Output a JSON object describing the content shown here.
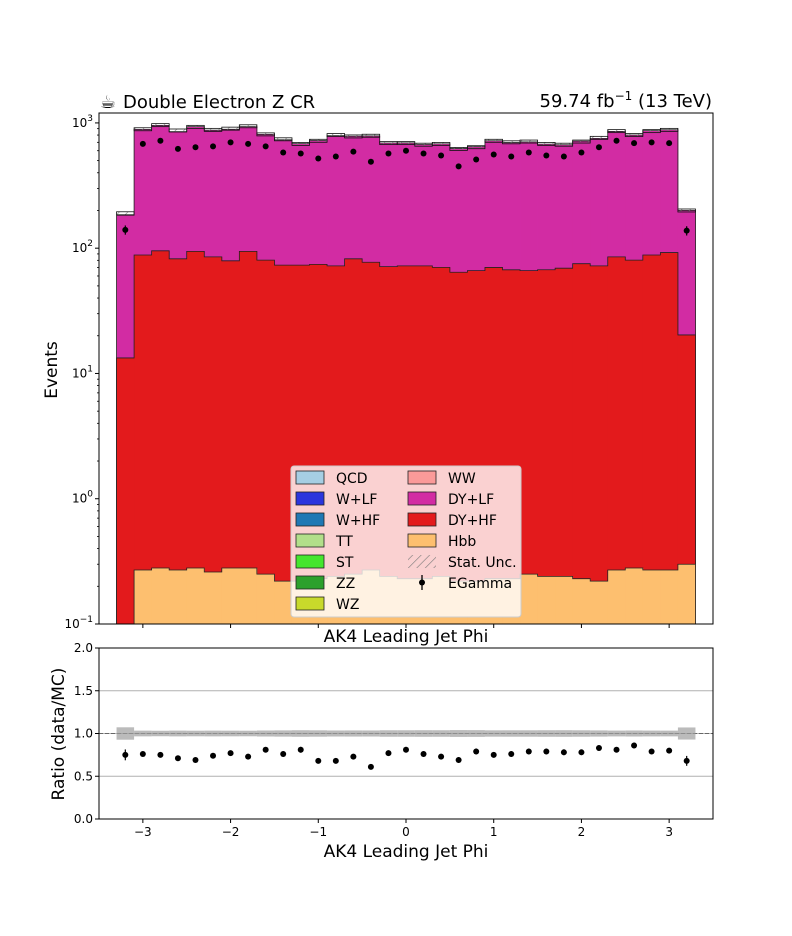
{
  "chart_data": [
    {
      "type": "histogram-stacked",
      "title_left": "Double Electron Z CR",
      "logo_glyph": "☕",
      "title_right_lumi": "59.74",
      "title_right_unit": "fb",
      "title_right_exp": "−1",
      "title_right_energy": "(13 TeV)",
      "ylabel": "Events",
      "xlabel": "AK4 Leading Jet Phi",
      "yscale": "log",
      "ylim": [
        0.1,
        1200
      ],
      "xlim": [
        -3.5,
        3.5
      ],
      "ytick_labels": [
        {
          "b": "10",
          "e": "−1"
        },
        {
          "b": "10",
          "e": "0"
        },
        {
          "b": "10",
          "e": "1"
        },
        {
          "b": "10",
          "e": "2"
        },
        {
          "b": "10",
          "e": "3"
        }
      ],
      "ytick_values": [
        0.1,
        1,
        10,
        100,
        1000
      ],
      "bin_edges": [
        -3.3,
        -3.1,
        -2.9,
        -2.7,
        -2.5,
        -2.3,
        -2.1,
        -1.9,
        -1.7,
        -1.5,
        -1.3,
        -1.1,
        -0.9,
        -0.7,
        -0.5,
        -0.3,
        -0.1,
        0.1,
        0.3,
        0.5,
        0.7,
        0.9,
        1.1,
        1.3,
        1.5,
        1.7,
        1.9,
        2.1,
        2.3,
        2.5,
        2.7,
        2.9,
        3.1,
        3.3
      ],
      "series": [
        {
          "name": "Hbb",
          "color": "#fdbf6f",
          "values": [
            0.1,
            0.27,
            0.28,
            0.27,
            0.28,
            0.26,
            0.28,
            0.28,
            0.25,
            0.22,
            0.22,
            0.23,
            0.24,
            0.25,
            0.27,
            0.24,
            0.23,
            0.23,
            0.24,
            0.22,
            0.22,
            0.23,
            0.23,
            0.25,
            0.24,
            0.24,
            0.23,
            0.22,
            0.27,
            0.28,
            0.27,
            0.27,
            0.3
          ]
        },
        {
          "name": "DY+HF",
          "color": "#e31a1c",
          "values": [
            13.2,
            88,
            95,
            82,
            94,
            85,
            79,
            94,
            80,
            73,
            73,
            74,
            72,
            82,
            77,
            71,
            72,
            72,
            70,
            64,
            66,
            70,
            67,
            66,
            67,
            69,
            75,
            72,
            85,
            80,
            88,
            92,
            20
          ]
        },
        {
          "name": "DY+LF",
          "color": "#d22ca3",
          "values": [
            170,
            800,
            860,
            770,
            840,
            790,
            810,
            840,
            730,
            660,
            610,
            650,
            720,
            700,
            710,
            620,
            620,
            600,
            610,
            560,
            580,
            650,
            630,
            640,
            610,
            600,
            640,
            680,
            770,
            720,
            780,
            790,
            180
          ]
        }
      ],
      "total_mc": [
        190,
        890,
        960,
        870,
        930,
        880,
        900,
        940,
        810,
        740,
        680,
        720,
        800,
        780,
        790,
        690,
        690,
        670,
        680,
        620,
        640,
        720,
        700,
        710,
        680,
        670,
        710,
        760,
        860,
        800,
        860,
        880,
        200
      ],
      "data_series": {
        "name": "EGamma",
        "x": [
          -3.2,
          -3.0,
          -2.8,
          -2.6,
          -2.4,
          -2.2,
          -2.0,
          -1.8,
          -1.6,
          -1.4,
          -1.2,
          -1.0,
          -0.8,
          -0.6,
          -0.4,
          -0.2,
          0.0,
          0.2,
          0.4,
          0.6,
          0.8,
          1.0,
          1.2,
          1.4,
          1.6,
          1.8,
          2.0,
          2.2,
          2.4,
          2.6,
          2.8,
          3.0,
          3.2
        ],
        "y": [
          140,
          680,
          720,
          620,
          640,
          650,
          700,
          680,
          650,
          580,
          570,
          520,
          540,
          590,
          490,
          570,
          600,
          570,
          550,
          450,
          510,
          560,
          540,
          580,
          550,
          540,
          580,
          640,
          720,
          690,
          700,
          690,
          138
        ]
      },
      "legend": [
        {
          "label": "QCD",
          "color": "#a6cee3",
          "kind": "box"
        },
        {
          "label": "WW",
          "color": "#fb9a99",
          "kind": "box"
        },
        {
          "label": "W+LF",
          "color": "#2b35dd",
          "kind": "box"
        },
        {
          "label": "DY+LF",
          "color": "#d22ca3",
          "kind": "box"
        },
        {
          "label": "W+HF",
          "color": "#1f78b4",
          "kind": "box"
        },
        {
          "label": "DY+HF",
          "color": "#e31a1c",
          "kind": "box"
        },
        {
          "label": "TT",
          "color": "#b2df8a",
          "kind": "box"
        },
        {
          "label": "Hbb",
          "color": "#fdbf6f",
          "kind": "box"
        },
        {
          "label": "ST",
          "color": "#45e62e",
          "kind": "box"
        },
        {
          "label": "Stat. Unc.",
          "color": "#888888",
          "kind": "hatch"
        },
        {
          "label": "ZZ",
          "color": "#2ca02c",
          "kind": "box"
        },
        {
          "label": "EGamma",
          "color": "#000000",
          "kind": "marker"
        },
        {
          "label": "WZ",
          "color": "#c8d92b",
          "kind": "box"
        }
      ],
      "legend_placement": "lower-center"
    },
    {
      "type": "scatter-ratio",
      "xlabel": "AK4 Leading Jet Phi",
      "xlabel_upper_repeat": "AK4 Leading Jet Phi",
      "ylabel": "Ratio (data/MC)",
      "ylim": [
        0.0,
        2.0
      ],
      "xlim": [
        -3.5,
        3.5
      ],
      "grid": true,
      "reference_line": 1.0,
      "ytick_labels": [
        "0.0",
        "0.5",
        "1.0",
        "1.5",
        "2.0"
      ],
      "ytick_values": [
        0.0,
        0.5,
        1.0,
        1.5,
        2.0
      ],
      "xtick_labels": [
        "−3",
        "−2",
        "−1",
        "0",
        "1",
        "2",
        "3"
      ],
      "xtick_values": [
        -3,
        -2,
        -1,
        0,
        1,
        2,
        3
      ],
      "x": [
        -3.2,
        -3.0,
        -2.8,
        -2.6,
        -2.4,
        -2.2,
        -2.0,
        -1.8,
        -1.6,
        -1.4,
        -1.2,
        -1.0,
        -0.8,
        -0.6,
        -0.4,
        -0.2,
        0.0,
        0.2,
        0.4,
        0.6,
        0.8,
        1.0,
        1.2,
        1.4,
        1.6,
        1.8,
        2.0,
        2.2,
        2.4,
        2.6,
        2.8,
        3.0,
        3.2
      ],
      "y": [
        0.75,
        0.76,
        0.75,
        0.71,
        0.69,
        0.74,
        0.77,
        0.73,
        0.81,
        0.76,
        0.81,
        0.68,
        0.68,
        0.73,
        0.61,
        0.77,
        0.81,
        0.76,
        0.73,
        0.69,
        0.79,
        0.75,
        0.76,
        0.79,
        0.79,
        0.78,
        0.78,
        0.83,
        0.81,
        0.86,
        0.79,
        0.8,
        0.68
      ]
    }
  ]
}
